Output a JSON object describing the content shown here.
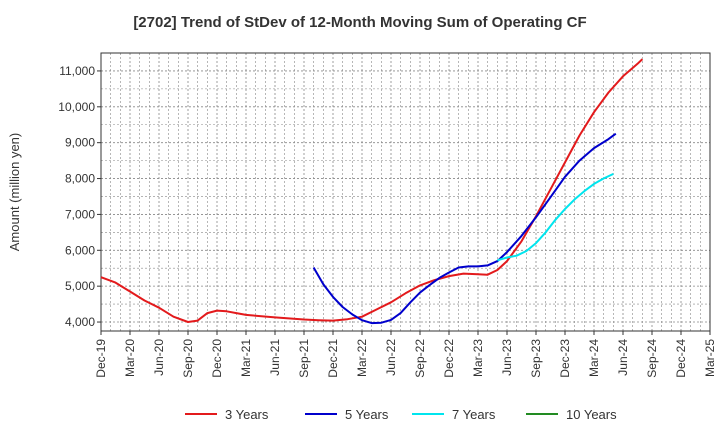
{
  "chart_data": {
    "type": "line",
    "title": "[2702]  Trend of StDev of 12-Month Moving Sum of Operating CF",
    "xlabel": "",
    "ylabel": "Amount (million yen)",
    "ylim": [
      3750,
      11500
    ],
    "yticks": [
      4000,
      5000,
      6000,
      7000,
      8000,
      9000,
      10000,
      11000
    ],
    "ytick_labels": [
      "4,000",
      "5,000",
      "6,000",
      "7,000",
      "8,000",
      "9,000",
      "10,000",
      "11,000"
    ],
    "x_categories": [
      "Dec-19",
      "Mar-20",
      "Jun-20",
      "Sep-20",
      "Dec-20",
      "Mar-21",
      "Jun-21",
      "Sep-21",
      "Dec-21",
      "Mar-22",
      "Jun-22",
      "Sep-22",
      "Dec-22",
      "Mar-23",
      "Jun-23",
      "Sep-23",
      "Dec-23",
      "Mar-24",
      "Jun-24",
      "Sep-24",
      "Dec-24",
      "Mar-25"
    ],
    "grid": true,
    "legend_position": "bottom",
    "series": [
      {
        "name": "3 Years",
        "color": "#e31a1c",
        "points": [
          [
            0,
            5250
          ],
          [
            0.5,
            5100
          ],
          [
            1,
            4850
          ],
          [
            1.5,
            4600
          ],
          [
            2,
            4400
          ],
          [
            2.5,
            4150
          ],
          [
            3,
            4000
          ],
          [
            3.33,
            4040
          ],
          [
            3.67,
            4250
          ],
          [
            4,
            4320
          ],
          [
            4.33,
            4300
          ],
          [
            4.67,
            4250
          ],
          [
            5,
            4200
          ],
          [
            6,
            4130
          ],
          [
            7,
            4070
          ],
          [
            7.5,
            4050
          ],
          [
            8,
            4040
          ],
          [
            8.5,
            4080
          ],
          [
            9,
            4150
          ],
          [
            9.5,
            4350
          ],
          [
            10,
            4550
          ],
          [
            10.5,
            4800
          ],
          [
            11,
            5020
          ],
          [
            11.5,
            5170
          ],
          [
            12,
            5280
          ],
          [
            12.5,
            5350
          ],
          [
            13,
            5330
          ],
          [
            13.33,
            5320
          ],
          [
            13.67,
            5450
          ],
          [
            14,
            5700
          ],
          [
            14.5,
            6250
          ],
          [
            15,
            6950
          ],
          [
            15.5,
            7700
          ],
          [
            16,
            8450
          ],
          [
            16.5,
            9200
          ],
          [
            17,
            9850
          ],
          [
            17.5,
            10400
          ],
          [
            18,
            10850
          ],
          [
            18.5,
            11200
          ],
          [
            18.67,
            11330
          ]
        ]
      },
      {
        "name": "5 Years",
        "color": "#0000cc",
        "points": [
          [
            7.33,
            5520
          ],
          [
            7.67,
            5050
          ],
          [
            8,
            4700
          ],
          [
            8.33,
            4420
          ],
          [
            8.67,
            4210
          ],
          [
            9,
            4050
          ],
          [
            9.33,
            3970
          ],
          [
            9.67,
            3980
          ],
          [
            10,
            4060
          ],
          [
            10.33,
            4250
          ],
          [
            10.67,
            4550
          ],
          [
            11,
            4820
          ],
          [
            11.33,
            5030
          ],
          [
            11.67,
            5230
          ],
          [
            12,
            5380
          ],
          [
            12.33,
            5520
          ],
          [
            12.67,
            5550
          ],
          [
            13,
            5550
          ],
          [
            13.33,
            5580
          ],
          [
            13.67,
            5700
          ],
          [
            14,
            5950
          ],
          [
            14.5,
            6400
          ],
          [
            15,
            6920
          ],
          [
            15.5,
            7480
          ],
          [
            16,
            8050
          ],
          [
            16.5,
            8500
          ],
          [
            17,
            8850
          ],
          [
            17.5,
            9100
          ],
          [
            17.75,
            9250
          ]
        ]
      },
      {
        "name": "7 Years",
        "color": "#00e5ee",
        "points": [
          [
            13.67,
            5720
          ],
          [
            14,
            5800
          ],
          [
            14.33,
            5850
          ],
          [
            14.67,
            5980
          ],
          [
            15,
            6200
          ],
          [
            15.33,
            6500
          ],
          [
            15.67,
            6850
          ],
          [
            16,
            7150
          ],
          [
            16.33,
            7420
          ],
          [
            16.67,
            7650
          ],
          [
            17,
            7850
          ],
          [
            17.33,
            8000
          ],
          [
            17.67,
            8130
          ]
        ]
      },
      {
        "name": "10 Years",
        "color": "#228b22",
        "points": []
      }
    ]
  }
}
